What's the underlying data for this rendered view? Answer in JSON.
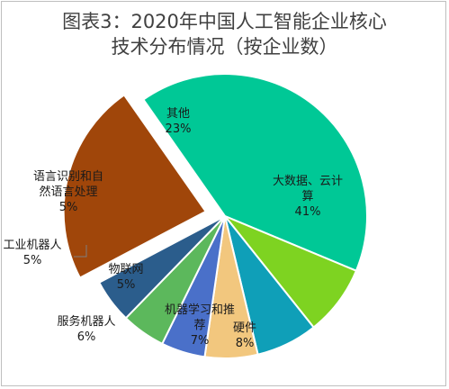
{
  "chart_data": {
    "type": "pie",
    "title_lines": [
      "图表3：2020年中国人工智能企业核心",
      "技术分布情况（按企业数）"
    ],
    "slices": [
      {
        "name_lines": [
          "大数据、云计",
          "算"
        ],
        "value": 41,
        "value_label": "41%",
        "color": "#00c896"
      },
      {
        "name_lines": [
          "硬件"
        ],
        "value": 8,
        "value_label": "8%",
        "color": "#7ed321"
      },
      {
        "name_lines": [
          "机器学习和推",
          "荐"
        ],
        "value": 7,
        "value_label": "7%",
        "color": "#0f9fb8"
      },
      {
        "name_lines": [
          "服务机器人"
        ],
        "value": 6,
        "value_label": "6%",
        "color": "#f2c77e"
      },
      {
        "name_lines": [
          "物联网"
        ],
        "value": 5,
        "value_label": "5%",
        "color": "#4a70c9"
      },
      {
        "name_lines": [
          "工业机器人"
        ],
        "value": 5,
        "value_label": "5%",
        "color": "#5cb85c"
      },
      {
        "name_lines": [
          "语言识别和自",
          "然语言处理"
        ],
        "value": 5,
        "value_label": "5%",
        "color": "#2b5d8c"
      },
      {
        "name_lines": [
          "其他"
        ],
        "value": 23,
        "value_label": "23%",
        "color": "#a0460a"
      }
    ]
  }
}
